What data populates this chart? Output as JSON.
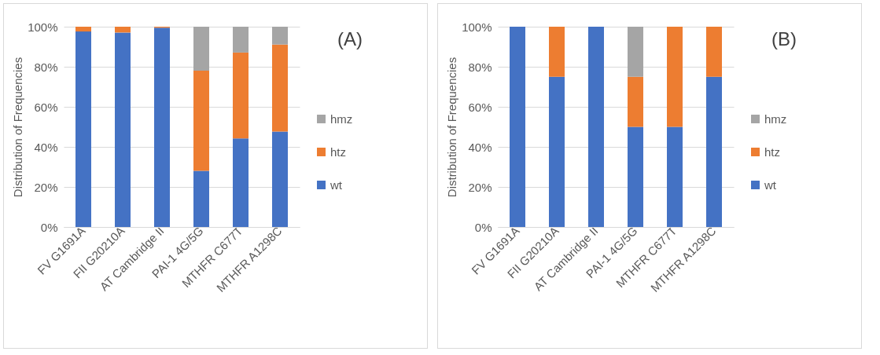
{
  "chart_data": [
    {
      "type": "bar",
      "stacked": true,
      "categories": [
        "FV G1691A",
        "FII G20210A",
        "AT Cambridge II",
        "PAI-1 4G/5G",
        "MTHFR C677T",
        "MTHFR A1298C"
      ],
      "ylabel": "Distribution of Frequencies",
      "annotations": [
        "(A)"
      ],
      "legend": "right",
      "grid": "y",
      "ylim": [
        0,
        100
      ],
      "yticks": [
        {
          "value": 0,
          "label": "0%"
        },
        {
          "value": 20,
          "label": "20%"
        },
        {
          "value": 40,
          "label": "40%"
        },
        {
          "value": 60,
          "label": "60%"
        },
        {
          "value": 80,
          "label": "80%"
        },
        {
          "value": 100,
          "label": "100%"
        }
      ],
      "series": [
        {
          "name": "wt",
          "color": "#4472c4",
          "values": [
            97.6,
            97.1,
            99.5,
            28,
            44.2,
            47.6
          ]
        },
        {
          "name": "htz",
          "color": "#ed7d31",
          "values": [
            2.4,
            2.9,
            0.5,
            50,
            42.9,
            43.5
          ]
        },
        {
          "name": "hmz",
          "color": "#a5a5a5",
          "values": [
            0,
            0,
            0,
            22,
            12.9,
            8.9
          ]
        }
      ]
    },
    {
      "type": "bar",
      "stacked": true,
      "categories": [
        "FV G1691A",
        "FII G20210A",
        "AT Cambridge II",
        "PAI-1 4G/5G",
        "MTHFR C677T",
        "MTHFR A1298C"
      ],
      "ylabel": "Distribution of Frequencies",
      "annotations": [
        "(B)"
      ],
      "legend": "right",
      "grid": "y",
      "ylim": [
        0,
        100
      ],
      "yticks": [
        {
          "value": 0,
          "label": "0%"
        },
        {
          "value": 20,
          "label": "20%"
        },
        {
          "value": 40,
          "label": "40%"
        },
        {
          "value": 60,
          "label": "60%"
        },
        {
          "value": 80,
          "label": "80%"
        },
        {
          "value": 100,
          "label": "100%"
        }
      ],
      "series": [
        {
          "name": "wt",
          "color": "#4472c4",
          "values": [
            100,
            75,
            100,
            50,
            50,
            75
          ]
        },
        {
          "name": "htz",
          "color": "#ed7d31",
          "values": [
            0,
            25,
            0,
            25,
            50,
            25
          ]
        },
        {
          "name": "hmz",
          "color": "#a5a5a5",
          "values": [
            0,
            0,
            0,
            25,
            0,
            0
          ]
        }
      ]
    }
  ]
}
